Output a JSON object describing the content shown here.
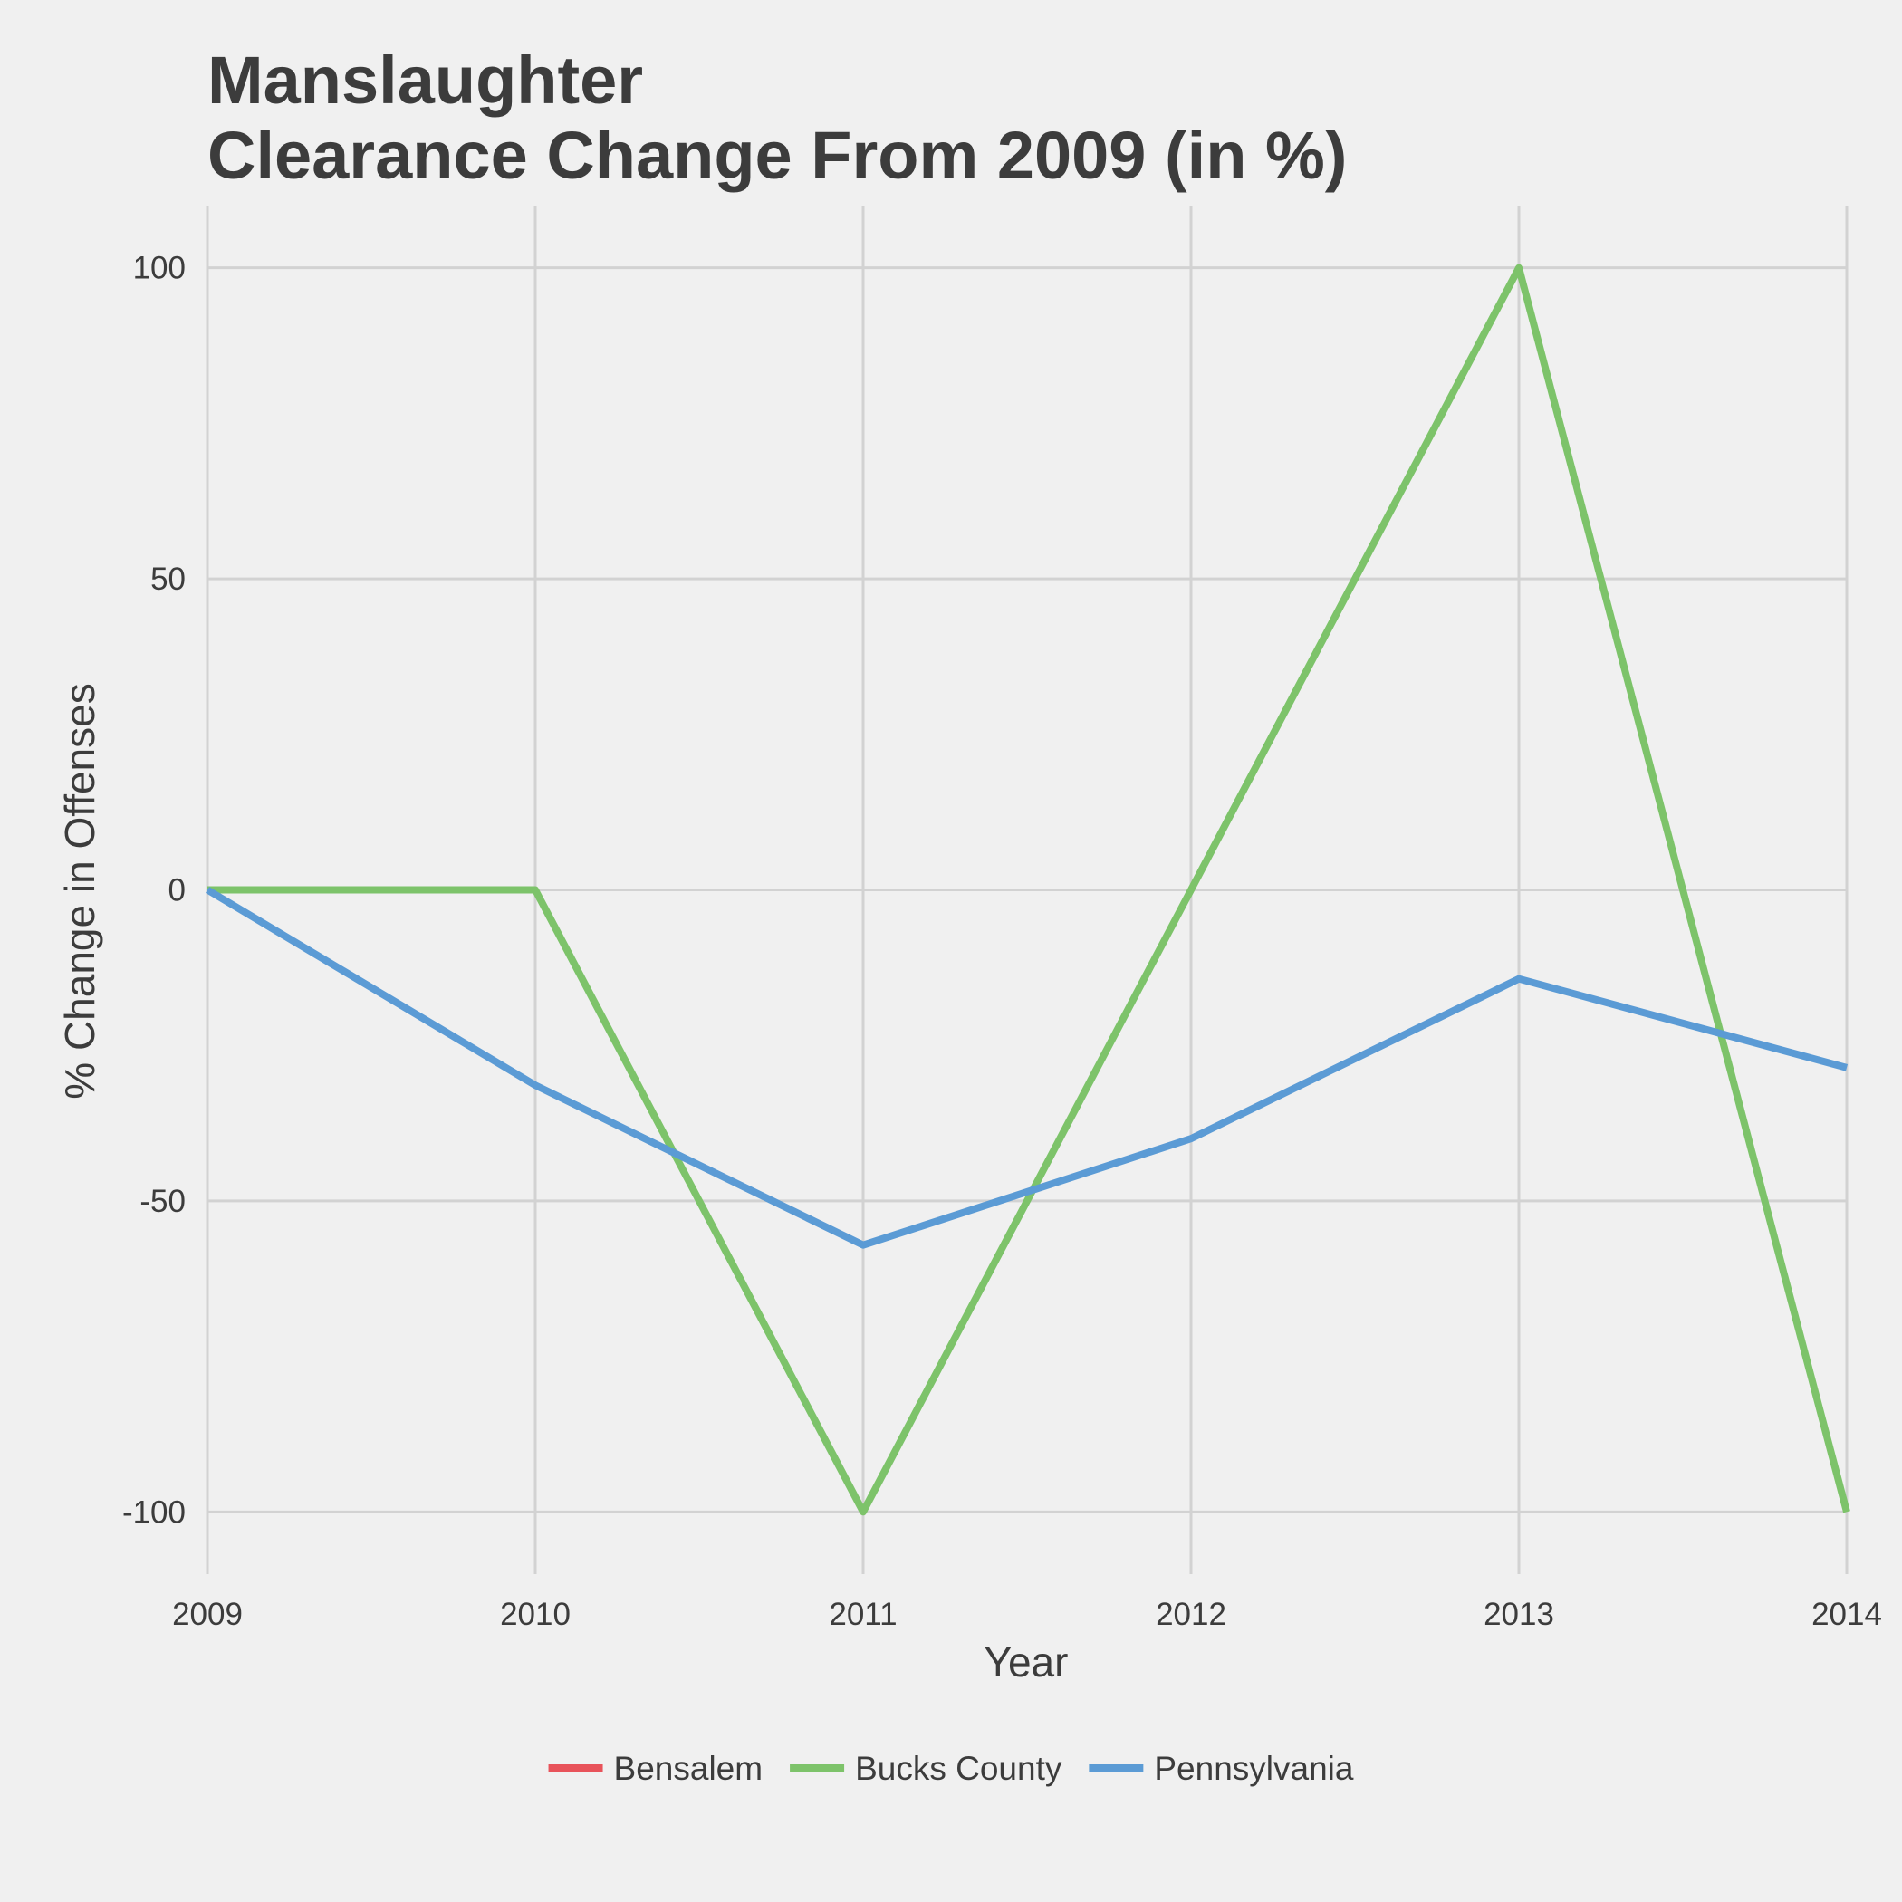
{
  "chart_data": {
    "type": "line",
    "title": [
      "Manslaughter",
      "Clearance Change From 2009 (in %)"
    ],
    "xlabel": "Year",
    "ylabel": "% Change in Offenses",
    "x": [
      2009,
      2010,
      2011,
      2012,
      2013,
      2014
    ],
    "x_tick_labels": [
      "2009",
      "2010",
      "2011",
      "2012",
      "2013",
      "2014"
    ],
    "y_ticks": [
      -100,
      -50,
      0,
      50,
      100
    ],
    "y_tick_labels": [
      "-100",
      "-50",
      "0",
      "50",
      "100"
    ],
    "xlim": [
      2009,
      2014
    ],
    "ylim": [
      -110,
      110
    ],
    "grid": true,
    "legend_position": "bottom",
    "series": [
      {
        "name": "Bensalem",
        "color": "#e8535a",
        "values": [
          null,
          null,
          null,
          null,
          null,
          null
        ]
      },
      {
        "name": "Bucks County",
        "color": "#7dc36a",
        "values": [
          0,
          0,
          -100,
          0,
          100,
          -100
        ]
      },
      {
        "name": "Pennsylvania",
        "color": "#5b9bd5",
        "values": [
          0,
          -31.4,
          -57.1,
          -40,
          -14.3,
          -28.6
        ]
      }
    ]
  }
}
